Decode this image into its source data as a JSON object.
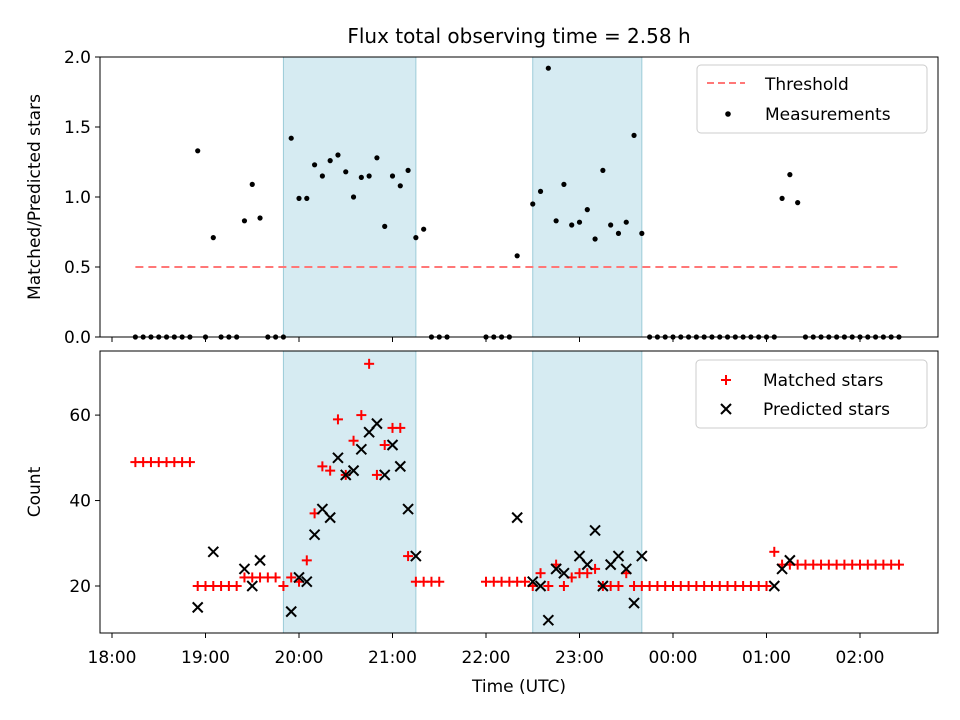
{
  "chart_data": {
    "title": "Flux total observing time = 2.58 h",
    "xlabel": "Time (UTC)",
    "x_tick_labels": [
      "18:00",
      "19:00",
      "20:00",
      "21:00",
      "22:00",
      "23:00",
      "00:00",
      "01:00",
      "02:00"
    ],
    "shaded_intervals": [
      [
        "19:50",
        "21:15"
      ],
      [
        "22:30",
        "23:40"
      ]
    ],
    "panels": [
      {
        "type": "scatter",
        "ylabel": "Matched/Predicted stars",
        "ylim": [
          0,
          2.0
        ],
        "y_ticks": [
          "0.0",
          "0.5",
          "1.0",
          "1.5",
          "2.0"
        ],
        "legend_position": "top-right",
        "threshold": {
          "name": "Threshold",
          "value": 0.5,
          "x_range": [
            "18:15",
            "02:25"
          ],
          "color": "#ff7777"
        },
        "series": [
          {
            "name": "Measurements",
            "color": "#000000",
            "points": [
              [
                "18:15",
                0.0
              ],
              [
                "18:20",
                0.0
              ],
              [
                "18:25",
                0.0
              ],
              [
                "18:30",
                0.0
              ],
              [
                "18:35",
                0.0
              ],
              [
                "18:40",
                0.0
              ],
              [
                "18:45",
                0.0
              ],
              [
                "18:50",
                0.0
              ],
              [
                "18:55",
                1.33
              ],
              [
                "19:00",
                0.0
              ],
              [
                "19:05",
                0.71
              ],
              [
                "19:10",
                0.0
              ],
              [
                "19:15",
                0.0
              ],
              [
                "19:20",
                0.0
              ],
              [
                "19:25",
                0.83
              ],
              [
                "19:30",
                1.09
              ],
              [
                "19:35",
                0.85
              ],
              [
                "19:40",
                0.0
              ],
              [
                "19:45",
                0.0
              ],
              [
                "19:50",
                0.0
              ],
              [
                "19:55",
                1.42
              ],
              [
                "20:00",
                0.99
              ],
              [
                "20:05",
                0.99
              ],
              [
                "20:10",
                1.23
              ],
              [
                "20:15",
                1.15
              ],
              [
                "20:20",
                1.26
              ],
              [
                "20:25",
                1.3
              ],
              [
                "20:30",
                1.18
              ],
              [
                "20:35",
                1.0
              ],
              [
                "20:40",
                1.14
              ],
              [
                "20:45",
                1.15
              ],
              [
                "20:50",
                1.28
              ],
              [
                "20:55",
                0.79
              ],
              [
                "21:00",
                1.15
              ],
              [
                "21:05",
                1.08
              ],
              [
                "21:10",
                1.19
              ],
              [
                "21:15",
                0.71
              ],
              [
                "21:20",
                0.77
              ],
              [
                "21:25",
                0.0
              ],
              [
                "21:30",
                0.0
              ],
              [
                "21:35",
                0.0
              ],
              [
                "22:00",
                0.0
              ],
              [
                "22:05",
                0.0
              ],
              [
                "22:10",
                0.0
              ],
              [
                "22:15",
                0.0
              ],
              [
                "22:20",
                0.58
              ],
              [
                "22:30",
                0.95
              ],
              [
                "22:35",
                1.04
              ],
              [
                "22:40",
                1.92
              ],
              [
                "22:45",
                0.83
              ],
              [
                "22:50",
                1.09
              ],
              [
                "22:55",
                0.8
              ],
              [
                "23:00",
                0.82
              ],
              [
                "23:05",
                0.91
              ],
              [
                "23:10",
                0.7
              ],
              [
                "23:15",
                1.19
              ],
              [
                "23:20",
                0.8
              ],
              [
                "23:25",
                0.74
              ],
              [
                "23:30",
                0.82
              ],
              [
                "23:35",
                1.44
              ],
              [
                "23:40",
                0.74
              ],
              [
                "23:45",
                0.0
              ],
              [
                "23:50",
                0.0
              ],
              [
                "23:55",
                0.0
              ],
              [
                "00:00",
                0.0
              ],
              [
                "00:05",
                0.0
              ],
              [
                "00:10",
                0.0
              ],
              [
                "00:15",
                0.0
              ],
              [
                "00:20",
                0.0
              ],
              [
                "00:25",
                0.0
              ],
              [
                "00:30",
                0.0
              ],
              [
                "00:35",
                0.0
              ],
              [
                "00:40",
                0.0
              ],
              [
                "00:45",
                0.0
              ],
              [
                "00:50",
                0.0
              ],
              [
                "00:55",
                0.0
              ],
              [
                "01:00",
                0.0
              ],
              [
                "01:05",
                0.0
              ],
              [
                "01:10",
                0.99
              ],
              [
                "01:15",
                1.16
              ],
              [
                "01:20",
                0.96
              ],
              [
                "01:25",
                0.0
              ],
              [
                "01:30",
                0.0
              ],
              [
                "01:35",
                0.0
              ],
              [
                "01:40",
                0.0
              ],
              [
                "01:45",
                0.0
              ],
              [
                "01:50",
                0.0
              ],
              [
                "01:55",
                0.0
              ],
              [
                "02:00",
                0.0
              ],
              [
                "02:05",
                0.0
              ],
              [
                "02:10",
                0.0
              ],
              [
                "02:15",
                0.0
              ],
              [
                "02:20",
                0.0
              ],
              [
                "02:25",
                0.0
              ]
            ]
          }
        ]
      },
      {
        "type": "scatter",
        "ylabel": "Count",
        "ylim": [
          9,
          75
        ],
        "y_ticks": [
          "20",
          "40",
          "60"
        ],
        "legend_position": "top-right",
        "series": [
          {
            "name": "Matched stars",
            "marker": "plus",
            "color": "#ff0000",
            "points": [
              [
                "18:15",
                49
              ],
              [
                "18:20",
                49
              ],
              [
                "18:25",
                49
              ],
              [
                "18:30",
                49
              ],
              [
                "18:35",
                49
              ],
              [
                "18:40",
                49
              ],
              [
                "18:45",
                49
              ],
              [
                "18:50",
                49
              ],
              [
                "18:55",
                20
              ],
              [
                "19:00",
                20
              ],
              [
                "19:05",
                20
              ],
              [
                "19:10",
                20
              ],
              [
                "19:15",
                20
              ],
              [
                "19:20",
                20
              ],
              [
                "19:25",
                22
              ],
              [
                "19:30",
                22
              ],
              [
                "19:35",
                22
              ],
              [
                "19:40",
                22
              ],
              [
                "19:45",
                22
              ],
              [
                "19:50",
                20
              ],
              [
                "19:55",
                22
              ],
              [
                "20:00",
                21
              ],
              [
                "20:05",
                26
              ],
              [
                "20:10",
                37
              ],
              [
                "20:15",
                48
              ],
              [
                "20:20",
                47
              ],
              [
                "20:25",
                59
              ],
              [
                "20:30",
                46
              ],
              [
                "20:35",
                54
              ],
              [
                "20:40",
                60
              ],
              [
                "20:45",
                72
              ],
              [
                "20:50",
                46
              ],
              [
                "20:55",
                53
              ],
              [
                "21:00",
                57
              ],
              [
                "21:05",
                57
              ],
              [
                "21:10",
                27
              ],
              [
                "21:15",
                21
              ],
              [
                "21:20",
                21
              ],
              [
                "21:25",
                21
              ],
              [
                "21:30",
                21
              ],
              [
                "22:00",
                21
              ],
              [
                "22:05",
                21
              ],
              [
                "22:10",
                21
              ],
              [
                "22:15",
                21
              ],
              [
                "22:20",
                21
              ],
              [
                "22:25",
                21
              ],
              [
                "22:30",
                20
              ],
              [
                "22:35",
                23
              ],
              [
                "22:40",
                20
              ],
              [
                "22:45",
                25
              ],
              [
                "22:50",
                20
              ],
              [
                "22:55",
                22
              ],
              [
                "23:00",
                23
              ],
              [
                "23:05",
                23
              ],
              [
                "23:10",
                24
              ],
              [
                "23:15",
                20
              ],
              [
                "23:20",
                20
              ],
              [
                "23:25",
                20
              ],
              [
                "23:30",
                23
              ],
              [
                "23:35",
                20
              ],
              [
                "23:40",
                20
              ],
              [
                "23:45",
                20
              ],
              [
                "23:50",
                20
              ],
              [
                "23:55",
                20
              ],
              [
                "00:00",
                20
              ],
              [
                "00:05",
                20
              ],
              [
                "00:10",
                20
              ],
              [
                "00:15",
                20
              ],
              [
                "00:20",
                20
              ],
              [
                "00:25",
                20
              ],
              [
                "00:30",
                20
              ],
              [
                "00:35",
                20
              ],
              [
                "00:40",
                20
              ],
              [
                "00:45",
                20
              ],
              [
                "00:50",
                20
              ],
              [
                "00:55",
                20
              ],
              [
                "01:00",
                20
              ],
              [
                "01:05",
                28
              ],
              [
                "01:10",
                25
              ],
              [
                "01:15",
                25
              ],
              [
                "01:20",
                25
              ],
              [
                "01:25",
                25
              ],
              [
                "01:30",
                25
              ],
              [
                "01:35",
                25
              ],
              [
                "01:40",
                25
              ],
              [
                "01:45",
                25
              ],
              [
                "01:50",
                25
              ],
              [
                "01:55",
                25
              ],
              [
                "02:00",
                25
              ],
              [
                "02:05",
                25
              ],
              [
                "02:10",
                25
              ],
              [
                "02:15",
                25
              ],
              [
                "02:20",
                25
              ],
              [
                "02:25",
                25
              ]
            ]
          },
          {
            "name": "Predicted stars",
            "marker": "x",
            "color": "#000000",
            "points": [
              [
                "18:55",
                15
              ],
              [
                "19:05",
                28
              ],
              [
                "19:25",
                24
              ],
              [
                "19:30",
                20
              ],
              [
                "19:35",
                26
              ],
              [
                "19:55",
                14
              ],
              [
                "20:00",
                22
              ],
              [
                "20:05",
                21
              ],
              [
                "20:10",
                32
              ],
              [
                "20:15",
                38
              ],
              [
                "20:20",
                36
              ],
              [
                "20:25",
                50
              ],
              [
                "20:30",
                46
              ],
              [
                "20:35",
                47
              ],
              [
                "20:40",
                52
              ],
              [
                "20:45",
                56
              ],
              [
                "20:50",
                58
              ],
              [
                "20:55",
                46
              ],
              [
                "21:00",
                53
              ],
              [
                "21:05",
                48
              ],
              [
                "21:10",
                38
              ],
              [
                "21:15",
                27
              ],
              [
                "22:20",
                36
              ],
              [
                "22:30",
                21
              ],
              [
                "22:35",
                20
              ],
              [
                "22:40",
                12
              ],
              [
                "22:45",
                24
              ],
              [
                "22:50",
                23
              ],
              [
                "23:00",
                27
              ],
              [
                "23:05",
                25
              ],
              [
                "23:10",
                33
              ],
              [
                "23:15",
                20
              ],
              [
                "23:20",
                25
              ],
              [
                "23:25",
                27
              ],
              [
                "23:30",
                24
              ],
              [
                "23:35",
                16
              ],
              [
                "23:40",
                27
              ],
              [
                "01:05",
                20
              ],
              [
                "01:10",
                24
              ],
              [
                "01:15",
                26
              ]
            ]
          }
        ]
      }
    ]
  }
}
